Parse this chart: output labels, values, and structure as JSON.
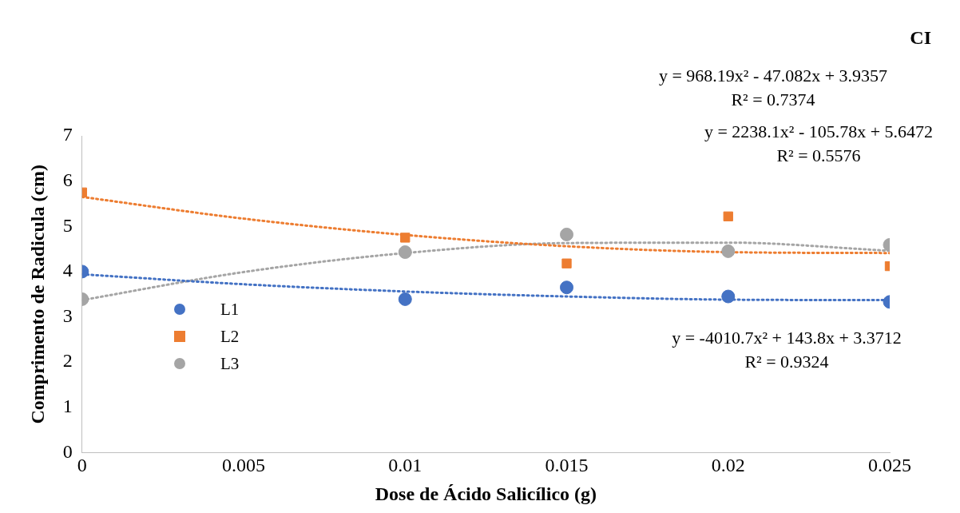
{
  "chart_data": {
    "type": "scatter",
    "title": "CI",
    "xlabel": "Dose de Ácido Salicílico (g)",
    "ylabel": "Comprimento de Radicula (cm)",
    "x": [
      0,
      0.01,
      0.015,
      0.02,
      0.025
    ],
    "series": [
      {
        "name": "L1",
        "color": "#4472c4",
        "marker": "circle",
        "values": [
          4.0,
          3.39,
          3.65,
          3.45,
          3.33
        ]
      },
      {
        "name": "L2",
        "color": "#ed7d31",
        "marker": "square",
        "values": [
          5.75,
          4.75,
          4.18,
          5.22,
          4.12
        ]
      },
      {
        "name": "L3",
        "color": "#a5a5a5",
        "marker": "circle",
        "values": [
          3.39,
          4.43,
          4.82,
          4.45,
          4.59
        ]
      },
      {
        "type": "line",
        "color": "#4472c4",
        "line_style": "dotted",
        "marker": "none",
        "x": [
          0,
          0.005,
          0.01,
          0.015,
          0.02,
          0.025
        ],
        "values": [
          3.94,
          3.72,
          3.56,
          3.45,
          3.38,
          3.37
        ]
      },
      {
        "type": "line",
        "color": "#ed7d31",
        "line_style": "dotted",
        "marker": "none",
        "x": [
          0,
          0.005,
          0.01,
          0.015,
          0.02,
          0.025
        ],
        "values": [
          5.65,
          5.17,
          4.81,
          4.56,
          4.43,
          4.41
        ]
      },
      {
        "type": "line",
        "color": "#a5a5a5",
        "line_style": "dotted",
        "marker": "none",
        "x": [
          0,
          0.005,
          0.01,
          0.015,
          0.02,
          0.025
        ],
        "values": [
          3.37,
          3.99,
          4.41,
          4.63,
          4.64,
          4.46
        ]
      }
    ],
    "annotations": [
      "y = 968.19x² - 47.082x + 3.9357",
      "R² = 0.7374",
      "y = 2238.1x² - 105.78x + 5.6472",
      "R² = 0.5576",
      "y = -4010.7x² + 143.8x + 3.3712",
      "R² = 0.9324"
    ],
    "xlim": [
      0,
      0.025
    ],
    "xticks": [
      0,
      0.005,
      0.01,
      0.015,
      0.02,
      0.025
    ],
    "ylim": [
      0,
      7
    ],
    "yticks": [
      0,
      1,
      2,
      3,
      4,
      5,
      6,
      7
    ],
    "grid": false,
    "legend": "left"
  }
}
